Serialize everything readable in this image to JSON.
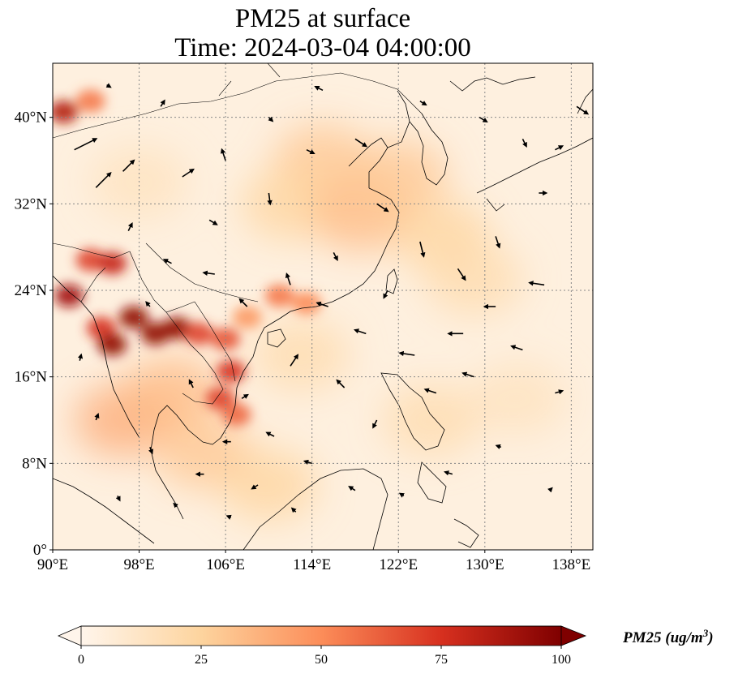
{
  "title": {
    "line1": "PM25 at surface",
    "line2": "Time: 2024-03-04 04:00:00"
  },
  "map": {
    "lon_range": [
      90,
      140
    ],
    "lat_range": [
      0,
      45
    ],
    "lon_ticks": [
      {
        "value": 90,
        "label": "90°E"
      },
      {
        "value": 98,
        "label": "98°E"
      },
      {
        "value": 106,
        "label": "106°E"
      },
      {
        "value": 114,
        "label": "114°E"
      },
      {
        "value": 122,
        "label": "122°E"
      },
      {
        "value": 130,
        "label": "130°E"
      },
      {
        "value": 138,
        "label": "138°E"
      }
    ],
    "lat_ticks": [
      {
        "value": 0,
        "label": "0°"
      },
      {
        "value": 8,
        "label": "8°N"
      },
      {
        "value": 16,
        "label": "16°N"
      },
      {
        "value": 24,
        "label": "24°N"
      },
      {
        "value": 32,
        "label": "32°N"
      },
      {
        "value": 40,
        "label": "40°N"
      }
    ],
    "gridlines": "dotted",
    "colors": {
      "c0": "#fff5eb",
      "c25": "#fdd49e",
      "c50": "#fc8d59",
      "c75": "#d7301f",
      "c100": "#7f0000",
      "coast": "#000000",
      "arrow": "#000000"
    },
    "pm25_hotspots": [
      {
        "lon": 91.0,
        "lat": 40.5,
        "value": 85
      },
      {
        "lon": 93.5,
        "lat": 41.5,
        "value": 55
      },
      {
        "lon": 93.5,
        "lat": 26.8,
        "value": 70
      },
      {
        "lon": 95.5,
        "lat": 26.5,
        "value": 80
      },
      {
        "lon": 91.5,
        "lat": 23.5,
        "value": 90
      },
      {
        "lon": 94.5,
        "lat": 20.5,
        "value": 75
      },
      {
        "lon": 95.5,
        "lat": 19.0,
        "value": 95
      },
      {
        "lon": 97.5,
        "lat": 21.5,
        "value": 95
      },
      {
        "lon": 99.5,
        "lat": 20.0,
        "value": 95
      },
      {
        "lon": 101.5,
        "lat": 20.5,
        "value": 95
      },
      {
        "lon": 103.5,
        "lat": 20.0,
        "value": 70
      },
      {
        "lon": 106.0,
        "lat": 19.5,
        "value": 65
      },
      {
        "lon": 106.5,
        "lat": 16.5,
        "value": 75
      },
      {
        "lon": 105.5,
        "lat": 14.0,
        "value": 70
      },
      {
        "lon": 107.0,
        "lat": 12.5,
        "value": 60
      },
      {
        "lon": 111.0,
        "lat": 23.5,
        "value": 55
      },
      {
        "lon": 113.5,
        "lat": 22.8,
        "value": 50
      },
      {
        "lon": 108.0,
        "lat": 21.5,
        "value": 45
      }
    ],
    "pm25_regions": [
      {
        "lon": 96.5,
        "lat": 12.0,
        "value": 40
      },
      {
        "lon": 101.0,
        "lat": 14.5,
        "value": 35
      },
      {
        "lon": 104.0,
        "lat": 9.0,
        "value": 30
      },
      {
        "lon": 115.0,
        "lat": 36.0,
        "value": 30
      },
      {
        "lon": 112.0,
        "lat": 32.0,
        "value": 25
      },
      {
        "lon": 118.5,
        "lat": 31.0,
        "value": 35
      },
      {
        "lon": 122.0,
        "lat": 34.5,
        "value": 30
      },
      {
        "lon": 126.0,
        "lat": 29.0,
        "value": 25
      },
      {
        "lon": 129.0,
        "lat": 25.0,
        "value": 20
      },
      {
        "lon": 113.0,
        "lat": 18.0,
        "value": 20
      },
      {
        "lon": 110.0,
        "lat": 6.0,
        "value": 25
      },
      {
        "lon": 98.0,
        "lat": 34.0,
        "value": 15
      },
      {
        "lon": 125.0,
        "lat": 12.0,
        "value": 20
      },
      {
        "lon": 133.0,
        "lat": 14.0,
        "value": 15
      }
    ],
    "wind_vectors": [
      {
        "lon": 92.0,
        "lat": 37.0,
        "u": 3.0,
        "v": 1.5
      },
      {
        "lon": 94.0,
        "lat": 33.5,
        "u": 2.0,
        "v": 2.0
      },
      {
        "lon": 96.5,
        "lat": 35.0,
        "u": 1.5,
        "v": 1.5
      },
      {
        "lon": 102.0,
        "lat": 34.5,
        "u": 1.5,
        "v": 1.0
      },
      {
        "lon": 106.0,
        "lat": 36.0,
        "u": -0.5,
        "v": 1.5
      },
      {
        "lon": 110.0,
        "lat": 33.0,
        "u": 0.2,
        "v": -1.5
      },
      {
        "lon": 113.5,
        "lat": 37.0,
        "u": 1.0,
        "v": -0.5
      },
      {
        "lon": 118.0,
        "lat": 38.0,
        "u": 1.5,
        "v": -1.0
      },
      {
        "lon": 120.0,
        "lat": 32.0,
        "u": 1.5,
        "v": -1.0
      },
      {
        "lon": 124.0,
        "lat": 28.5,
        "u": 0.5,
        "v": -2.0
      },
      {
        "lon": 127.5,
        "lat": 26.0,
        "u": 1.0,
        "v": -1.5
      },
      {
        "lon": 131.0,
        "lat": 29.0,
        "u": 0.5,
        "v": -1.5
      },
      {
        "lon": 135.0,
        "lat": 33.0,
        "u": 1.0,
        "v": 0.0
      },
      {
        "lon": 138.5,
        "lat": 41.0,
        "u": 1.5,
        "v": -1.0
      },
      {
        "lon": 136.5,
        "lat": 37.0,
        "u": 1.0,
        "v": 0.5
      },
      {
        "lon": 131.0,
        "lat": 22.5,
        "u": -1.5,
        "v": 0.0
      },
      {
        "lon": 135.5,
        "lat": 24.5,
        "u": -2.0,
        "v": 0.3
      },
      {
        "lon": 128.0,
        "lat": 20.0,
        "u": -2.0,
        "v": 0.0
      },
      {
        "lon": 123.5,
        "lat": 18.0,
        "u": -2.0,
        "v": 0.3
      },
      {
        "lon": 119.0,
        "lat": 20.0,
        "u": -1.5,
        "v": 0.5
      },
      {
        "lon": 115.5,
        "lat": 22.5,
        "u": -1.5,
        "v": 0.5
      },
      {
        "lon": 112.0,
        "lat": 24.5,
        "u": -0.5,
        "v": 1.5
      },
      {
        "lon": 108.0,
        "lat": 22.5,
        "u": -1.0,
        "v": 1.0
      },
      {
        "lon": 105.0,
        "lat": 25.5,
        "u": -1.5,
        "v": 0.2
      },
      {
        "lon": 101.0,
        "lat": 26.5,
        "u": -1.0,
        "v": 0.5
      },
      {
        "lon": 97.0,
        "lat": 29.5,
        "u": 0.5,
        "v": 1.0
      },
      {
        "lon": 112.0,
        "lat": 17.0,
        "u": 1.0,
        "v": 1.5
      },
      {
        "lon": 117.0,
        "lat": 15.0,
        "u": -1.0,
        "v": 1.0
      },
      {
        "lon": 120.0,
        "lat": 12.0,
        "u": -0.5,
        "v": -1.0
      },
      {
        "lon": 125.5,
        "lat": 14.5,
        "u": -1.5,
        "v": 0.5
      },
      {
        "lon": 129.0,
        "lat": 16.0,
        "u": -1.5,
        "v": 0.5
      },
      {
        "lon": 133.5,
        "lat": 18.5,
        "u": -1.5,
        "v": 0.5
      },
      {
        "lon": 136.5,
        "lat": 14.5,
        "u": 1.0,
        "v": 0.3
      },
      {
        "lon": 103.0,
        "lat": 15.0,
        "u": -0.5,
        "v": 1.0
      },
      {
        "lon": 107.5,
        "lat": 14.0,
        "u": 0.8,
        "v": 0.5
      },
      {
        "lon": 110.5,
        "lat": 10.5,
        "u": -1.0,
        "v": 0.5
      },
      {
        "lon": 114.0,
        "lat": 8.0,
        "u": -1.0,
        "v": 0.3
      },
      {
        "lon": 118.0,
        "lat": 5.5,
        "u": -0.8,
        "v": 0.5
      },
      {
        "lon": 109.0,
        "lat": 6.0,
        "u": -0.8,
        "v": -0.5
      },
      {
        "lon": 104.0,
        "lat": 7.0,
        "u": -1.0,
        "v": 0.0
      },
      {
        "lon": 99.0,
        "lat": 9.5,
        "u": 0.3,
        "v": -0.8
      },
      {
        "lon": 94.0,
        "lat": 12.0,
        "u": 0.3,
        "v": 0.8
      },
      {
        "lon": 92.5,
        "lat": 17.5,
        "u": 0.2,
        "v": 0.8
      },
      {
        "lon": 96.0,
        "lat": 5.0,
        "u": 0.3,
        "v": -0.6
      },
      {
        "lon": 101.5,
        "lat": 4.0,
        "u": -0.4,
        "v": 0.4
      },
      {
        "lon": 106.5,
        "lat": 3.0,
        "u": -0.5,
        "v": 0.2
      },
      {
        "lon": 112.5,
        "lat": 3.5,
        "u": -0.5,
        "v": 0.5
      },
      {
        "lon": 122.5,
        "lat": 5.0,
        "u": -0.5,
        "v": 0.3
      },
      {
        "lon": 127.0,
        "lat": 7.0,
        "u": -1.0,
        "v": 0.3
      },
      {
        "lon": 131.5,
        "lat": 9.5,
        "u": -0.6,
        "v": 0.2
      },
      {
        "lon": 136.0,
        "lat": 5.5,
        "u": 0.3,
        "v": 0.3
      },
      {
        "lon": 110.0,
        "lat": 40.0,
        "u": 0.5,
        "v": -0.5
      },
      {
        "lon": 115.0,
        "lat": 42.5,
        "u": -1.0,
        "v": 0.5
      },
      {
        "lon": 124.0,
        "lat": 41.5,
        "u": 0.8,
        "v": -0.5
      },
      {
        "lon": 129.5,
        "lat": 40.0,
        "u": 1.0,
        "v": -0.6
      },
      {
        "lon": 133.5,
        "lat": 38.0,
        "u": 0.5,
        "v": -1.0
      },
      {
        "lon": 100.0,
        "lat": 41.0,
        "u": 0.5,
        "v": 0.8
      },
      {
        "lon": 95.0,
        "lat": 43.0,
        "u": 0.5,
        "v": -0.3
      },
      {
        "lon": 104.5,
        "lat": 30.5,
        "u": 1.0,
        "v": -0.6
      },
      {
        "lon": 116.0,
        "lat": 27.5,
        "u": 0.5,
        "v": -1.0
      },
      {
        "lon": 121.0,
        "lat": 24.0,
        "u": -0.5,
        "v": -1.0
      },
      {
        "lon": 99.0,
        "lat": 22.5,
        "u": -0.5,
        "v": 0.6
      },
      {
        "lon": 106.5,
        "lat": 10.0,
        "u": -1.0,
        "v": 0.0
      }
    ]
  },
  "colorbar": {
    "ticks": [
      "0",
      "25",
      "50",
      "75",
      "100"
    ],
    "min": 0,
    "max": 100,
    "label": "PM25 (ug/m",
    "label_sup": "3",
    "label_end": ")"
  }
}
